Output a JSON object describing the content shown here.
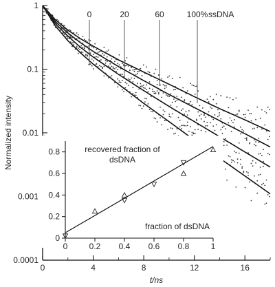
{
  "chart_data": [
    {
      "type": "scatter",
      "xlabel": "t/ns",
      "ylabel": "Normalized intensity",
      "xlim": [
        0,
        18
      ],
      "ylim": [
        0.0001,
        1
      ],
      "y_scale": "log",
      "x_ticks": [
        "0",
        "4",
        "8",
        "12",
        "16"
      ],
      "y_ticks": [
        "1",
        "0.1",
        "0.01",
        "0.001",
        "0.0001"
      ],
      "annotations": [
        "0",
        "20",
        "60",
        "100%",
        "ssDNA"
      ],
      "series": [
        {
          "name": "100%",
          "fit_points": [
            [
              0,
              1
            ],
            [
              1,
              0.6
            ],
            [
              2,
              0.41
            ],
            [
              3,
              0.3
            ],
            [
              4,
              0.23
            ],
            [
              6,
              0.14
            ],
            [
              8,
              0.09
            ],
            [
              10,
              0.058
            ],
            [
              12,
              0.037
            ],
            [
              14,
              0.024
            ],
            [
              16,
              0.016
            ],
            [
              18,
              0.0105
            ]
          ]
        },
        {
          "name": "60",
          "fit_points": [
            [
              0,
              1
            ],
            [
              1,
              0.56
            ],
            [
              2,
              0.37
            ],
            [
              3,
              0.26
            ],
            [
              4,
              0.19
            ],
            [
              6,
              0.11
            ],
            [
              8,
              0.066
            ],
            [
              10,
              0.04
            ],
            [
              12,
              0.025
            ],
            [
              14,
              0.0155
            ],
            [
              16,
              0.0097
            ],
            [
              18,
              0.006
            ]
          ]
        },
        {
          "name": "20",
          "fit_points": [
            [
              0,
              1
            ],
            [
              1,
              0.52
            ],
            [
              2,
              0.33
            ],
            [
              3,
              0.22
            ],
            [
              4,
              0.155
            ],
            [
              6,
              0.083
            ],
            [
              8,
              0.046
            ],
            [
              10,
              0.026
            ],
            [
              12,
              0.015
            ],
            [
              14,
              0.0087
            ],
            [
              16,
              0.005
            ],
            [
              18,
              0.0029
            ]
          ]
        },
        {
          "name": "0",
          "fit_points": [
            [
              0,
              1
            ],
            [
              1,
              0.48
            ],
            [
              2,
              0.28
            ],
            [
              3,
              0.18
            ],
            [
              4,
              0.12
            ],
            [
              6,
              0.058
            ],
            [
              8,
              0.029
            ],
            [
              10,
              0.015
            ],
            [
              12,
              0.0077
            ],
            [
              14,
              0.004
            ],
            [
              16,
              0.0021
            ],
            [
              18,
              0.0011
            ]
          ]
        }
      ]
    },
    {
      "type": "scatter",
      "xlabel": "fraction of dsDNA",
      "ylabel": "recovered fraction of dsDNA",
      "xlim": [
        0,
        1
      ],
      "ylim": [
        0,
        0.9
      ],
      "x_ticks": [
        "0",
        "0.2",
        "0.4",
        "0.6",
        "0.8",
        "1"
      ],
      "y_ticks": [
        "0",
        "0.2",
        "0.4",
        "0.6",
        "0.8"
      ],
      "series": [
        {
          "name": "",
          "x": [
            0,
            0.2,
            0.4,
            0.4,
            0.6,
            0.8,
            0.8,
            1
          ],
          "y": [
            0.02,
            0.25,
            0.35,
            0.4,
            0.5,
            0.6,
            0.7,
            0.82
          ]
        }
      ],
      "fit_line": [
        [
          0,
          0.05
        ],
        [
          1,
          0.85
        ]
      ]
    }
  ]
}
